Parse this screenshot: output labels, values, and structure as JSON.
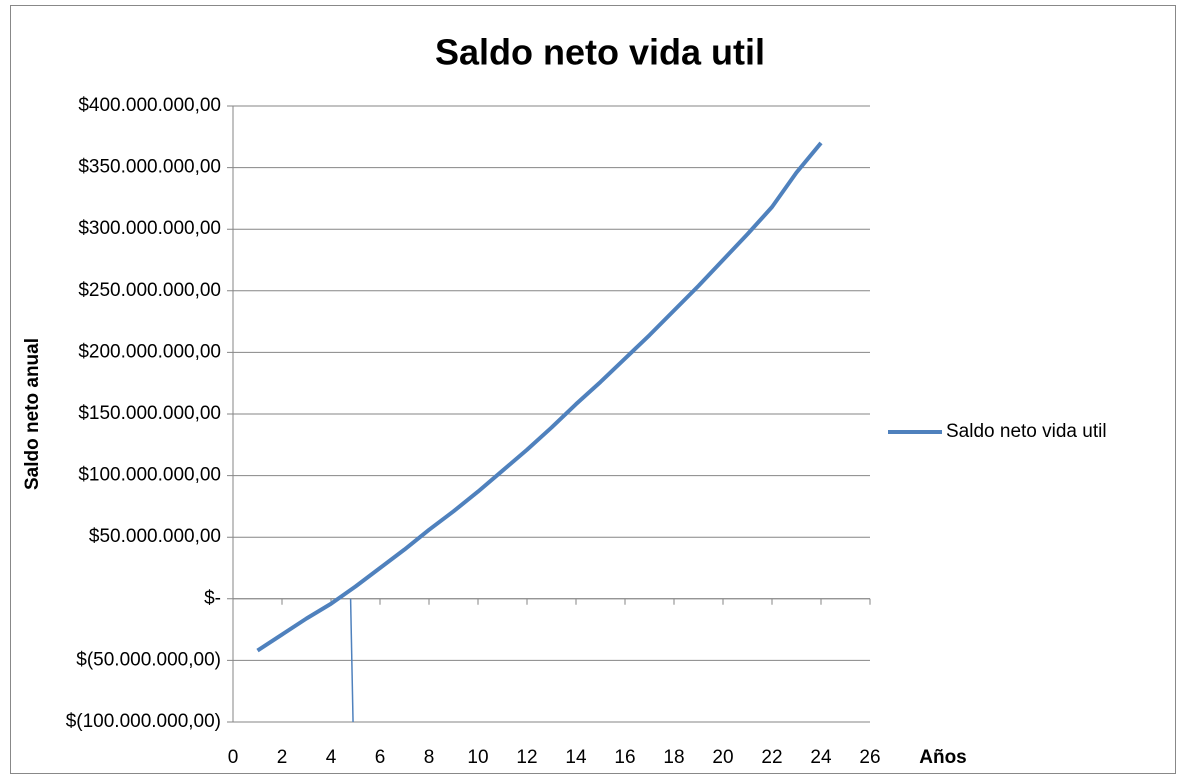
{
  "chart_data": {
    "type": "line",
    "title": "Saldo neto vida util",
    "x_label": "Años",
    "y_label": "Saldo neto anual",
    "x": [
      1,
      2,
      3,
      4,
      5,
      6,
      7,
      8,
      9,
      10,
      11,
      12,
      13,
      14,
      15,
      16,
      17,
      18,
      19,
      20,
      21,
      22,
      23,
      24
    ],
    "series": [
      {
        "name": "Saldo neto vida util",
        "color": "#4f81bd",
        "values": [
          -42000000,
          -29000000,
          -16000000,
          -4000000,
          10000000,
          25000000,
          40000000,
          56000000,
          71000000,
          87000000,
          104000000,
          121000000,
          139000000,
          158000000,
          176000000,
          195000000,
          214000000,
          234000000,
          254000000,
          275000000,
          296000000,
          318000000,
          346000000,
          370000000
        ]
      },
      {
        "color": "#4f81bd",
        "x": [
          4.8,
          4.9
        ],
        "values": [
          0,
          -100000000
        ]
      }
    ],
    "xlim": [
      0,
      26
    ],
    "xticks": [
      0,
      2,
      4,
      6,
      8,
      10,
      12,
      14,
      16,
      18,
      20,
      22,
      24,
      26
    ],
    "ylim": [
      -100000000,
      400000000
    ],
    "yticks": [
      {
        "value": -100000000,
        "label": "$(100.000.000,00)"
      },
      {
        "value": -50000000,
        "label": "$(50.000.000,00)"
      },
      {
        "value": 0,
        "label": "$-"
      },
      {
        "value": 50000000,
        "label": "$50.000.000,00"
      },
      {
        "value": 100000000,
        "label": "$100.000.000,00"
      },
      {
        "value": 150000000,
        "label": "$150.000.000,00"
      },
      {
        "value": 200000000,
        "label": "$200.000.000,00"
      },
      {
        "value": 250000000,
        "label": "$250.000.000,00"
      },
      {
        "value": 300000000,
        "label": "$300.000.000,00"
      },
      {
        "value": 350000000,
        "label": "$350.000.000,00"
      },
      {
        "value": 400000000,
        "label": "$400.000.000,00"
      }
    ],
    "grid": true,
    "legend": "right"
  }
}
